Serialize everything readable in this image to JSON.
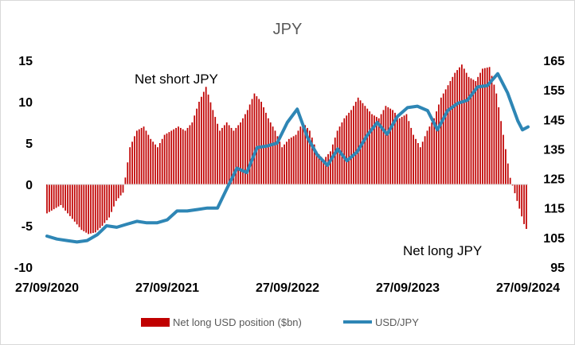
{
  "chart_data": {
    "type": "bar+line",
    "title": "JPY",
    "x_tick_labels": [
      "27/09/2020",
      "27/09/2021",
      "27/09/2022",
      "27/09/2023",
      "27/09/2024"
    ],
    "x_range": [
      "2020-09-27",
      "2024-09-27"
    ],
    "y_left": {
      "range": [
        -10,
        15
      ],
      "ticks": [
        -10,
        -5,
        0,
        5,
        10,
        15
      ]
    },
    "y_right": {
      "range": [
        95,
        165
      ],
      "ticks": [
        95,
        105,
        115,
        125,
        135,
        145,
        155,
        165
      ]
    },
    "grid": false,
    "legend_position": "bottom",
    "annotations": [
      {
        "text": "Net short JPY"
      },
      {
        "text": "Net long JPY"
      }
    ],
    "bar_series": {
      "name": "Net long USD position ($bn)",
      "color": "#c00000",
      "axis": "left",
      "points": [
        [
          "2020-09-27",
          -3.5
        ],
        [
          "2020-10-18",
          -3
        ],
        [
          "2020-11-08",
          -2.5
        ],
        [
          "2020-11-29",
          -3.5
        ],
        [
          "2020-12-20",
          -4.5
        ],
        [
          "2021-01-10",
          -5.5
        ],
        [
          "2021-01-31",
          -6
        ],
        [
          "2021-02-21",
          -5.8
        ],
        [
          "2021-03-14",
          -5
        ],
        [
          "2021-04-04",
          -4
        ],
        [
          "2021-04-25",
          -2
        ],
        [
          "2021-05-16",
          -1
        ],
        [
          "2021-06-06",
          4.5
        ],
        [
          "2021-06-27",
          6.5
        ],
        [
          "2021-07-18",
          7
        ],
        [
          "2021-08-08",
          5.5
        ],
        [
          "2021-08-29",
          4.5
        ],
        [
          "2021-09-19",
          6
        ],
        [
          "2021-10-10",
          6.5
        ],
        [
          "2021-10-31",
          7
        ],
        [
          "2021-11-21",
          6.5
        ],
        [
          "2021-12-12",
          7.5
        ],
        [
          "2022-01-02",
          10
        ],
        [
          "2022-01-23",
          11.8
        ],
        [
          "2022-02-13",
          9
        ],
        [
          "2022-03-06",
          6.5
        ],
        [
          "2022-03-27",
          7.5
        ],
        [
          "2022-04-17",
          6.5
        ],
        [
          "2022-05-08",
          7.5
        ],
        [
          "2022-05-29",
          9
        ],
        [
          "2022-06-19",
          11
        ],
        [
          "2022-07-10",
          10
        ],
        [
          "2022-07-31",
          8
        ],
        [
          "2022-08-21",
          6.5
        ],
        [
          "2022-09-11",
          4.5
        ],
        [
          "2022-10-02",
          5.5
        ],
        [
          "2022-10-23",
          6
        ],
        [
          "2022-11-13",
          7.5
        ],
        [
          "2022-12-04",
          6.5
        ],
        [
          "2022-12-25",
          4
        ],
        [
          "2023-01-15",
          3
        ],
        [
          "2023-02-05",
          4
        ],
        [
          "2023-02-26",
          6.5
        ],
        [
          "2023-03-19",
          8
        ],
        [
          "2023-04-09",
          9
        ],
        [
          "2023-04-30",
          10.5
        ],
        [
          "2023-05-21",
          9.5
        ],
        [
          "2023-06-11",
          8.5
        ],
        [
          "2023-07-02",
          8
        ],
        [
          "2023-07-23",
          9.5
        ],
        [
          "2023-08-13",
          9
        ],
        [
          "2023-09-03",
          8
        ],
        [
          "2023-09-24",
          8.5
        ],
        [
          "2023-10-15",
          6
        ],
        [
          "2023-11-05",
          4.5
        ],
        [
          "2023-11-26",
          6.5
        ],
        [
          "2023-12-17",
          8
        ],
        [
          "2024-01-07",
          10.5
        ],
        [
          "2024-01-28",
          12
        ],
        [
          "2024-02-18",
          13.5
        ],
        [
          "2024-03-10",
          14.5
        ],
        [
          "2024-03-31",
          13
        ],
        [
          "2024-04-21",
          12.5
        ],
        [
          "2024-05-12",
          14
        ],
        [
          "2024-06-02",
          14.2
        ],
        [
          "2024-06-23",
          11
        ],
        [
          "2024-07-14",
          6
        ],
        [
          "2024-08-04",
          0.8
        ],
        [
          "2024-08-25",
          -2
        ],
        [
          "2024-09-15",
          -4.8
        ],
        [
          "2024-09-27",
          -5.8
        ]
      ]
    },
    "line_series": {
      "name": "USD/JPY",
      "color": "#2e86b5",
      "axis": "right",
      "points": [
        [
          "2020-09-27",
          105.5
        ],
        [
          "2020-10-27",
          104.5
        ],
        [
          "2020-11-27",
          104
        ],
        [
          "2020-12-27",
          103.5
        ],
        [
          "2021-01-27",
          104
        ],
        [
          "2021-02-27",
          106
        ],
        [
          "2021-03-27",
          109
        ],
        [
          "2021-04-27",
          108.5
        ],
        [
          "2021-05-27",
          109.5
        ],
        [
          "2021-06-27",
          110.5
        ],
        [
          "2021-07-27",
          110
        ],
        [
          "2021-08-27",
          110
        ],
        [
          "2021-09-27",
          111
        ],
        [
          "2021-10-27",
          114
        ],
        [
          "2021-11-27",
          114
        ],
        [
          "2021-12-27",
          114.5
        ],
        [
          "2022-01-27",
          115
        ],
        [
          "2022-02-27",
          115
        ],
        [
          "2022-03-27",
          121.5
        ],
        [
          "2022-04-27",
          128.5
        ],
        [
          "2022-05-27",
          127
        ],
        [
          "2022-06-27",
          135.5
        ],
        [
          "2022-07-27",
          136
        ],
        [
          "2022-08-27",
          137
        ],
        [
          "2022-09-27",
          144
        ],
        [
          "2022-10-27",
          148.5
        ],
        [
          "2022-11-27",
          139
        ],
        [
          "2022-12-27",
          133
        ],
        [
          "2023-01-27",
          129.5
        ],
        [
          "2023-02-27",
          135
        ],
        [
          "2023-03-27",
          131
        ],
        [
          "2023-04-27",
          134
        ],
        [
          "2023-05-27",
          139.5
        ],
        [
          "2023-06-27",
          144
        ],
        [
          "2023-07-27",
          140
        ],
        [
          "2023-08-27",
          146
        ],
        [
          "2023-09-27",
          149
        ],
        [
          "2023-10-27",
          149.5
        ],
        [
          "2023-11-27",
          148
        ],
        [
          "2023-12-27",
          141.5
        ],
        [
          "2024-01-27",
          148
        ],
        [
          "2024-02-27",
          150.5
        ],
        [
          "2024-03-27",
          151.5
        ],
        [
          "2024-04-27",
          156
        ],
        [
          "2024-05-27",
          156.5
        ],
        [
          "2024-06-27",
          160.5
        ],
        [
          "2024-07-27",
          154
        ],
        [
          "2024-08-27",
          144.5
        ],
        [
          "2024-09-10",
          141.5
        ],
        [
          "2024-09-27",
          142.5
        ]
      ]
    }
  }
}
